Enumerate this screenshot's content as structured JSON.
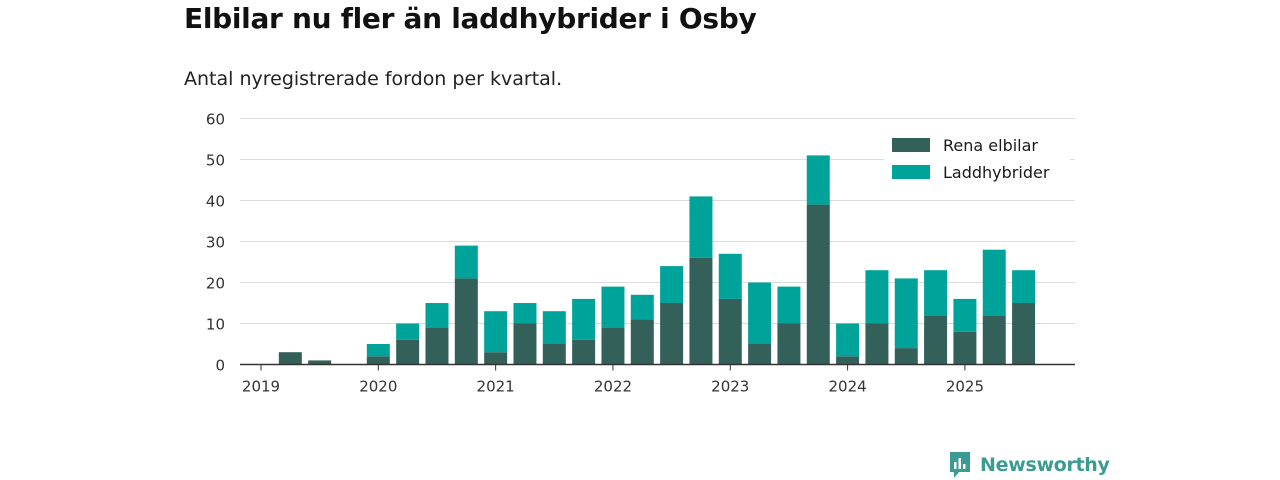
{
  "title": "Elbilar nu fler än laddhybrider i Osby",
  "subtitle": "Antal nyregistrerade fordon per kvartal.",
  "brand": {
    "name": "Newsworthy",
    "icon": "newsworthy-logo-icon"
  },
  "chart_data": {
    "type": "bar",
    "stacked": true,
    "x_ticks": [
      "2019",
      "2020",
      "2021",
      "2022",
      "2023",
      "2024",
      "2025"
    ],
    "categories": [
      "2019 Q1",
      "2019 Q2",
      "2019 Q3",
      "2019 Q4",
      "2020 Q1",
      "2020 Q2",
      "2020 Q3",
      "2020 Q4",
      "2021 Q1",
      "2021 Q2",
      "2021 Q3",
      "2021 Q4",
      "2022 Q1",
      "2022 Q2",
      "2022 Q3",
      "2022 Q4",
      "2023 Q1",
      "2023 Q2",
      "2023 Q3",
      "2023 Q4",
      "2024 Q1",
      "2024 Q2",
      "2024 Q3",
      "2024 Q4",
      "2025 Q1",
      "2025 Q2",
      "2025 Q3"
    ],
    "series": [
      {
        "name": "Rena elbilar",
        "color": "#34605a",
        "values": [
          0,
          3,
          1,
          0,
          2,
          6,
          9,
          21,
          3,
          10,
          5,
          6,
          9,
          11,
          15,
          26,
          16,
          5,
          10,
          39,
          2,
          10,
          4,
          12,
          8,
          12,
          15
        ]
      },
      {
        "name": "Laddhybrider",
        "color": "#00a39a",
        "values": [
          0,
          0,
          0,
          0,
          3,
          4,
          6,
          8,
          10,
          5,
          8,
          10,
          10,
          6,
          9,
          15,
          11,
          15,
          9,
          12,
          8,
          13,
          17,
          11,
          8,
          16,
          8
        ]
      }
    ],
    "y_ticks": [
      0,
      10,
      20,
      30,
      40,
      50,
      60
    ],
    "ylim": [
      0,
      60
    ],
    "xlabel": "",
    "ylabel": "",
    "grid": true,
    "legend": "top-right"
  }
}
